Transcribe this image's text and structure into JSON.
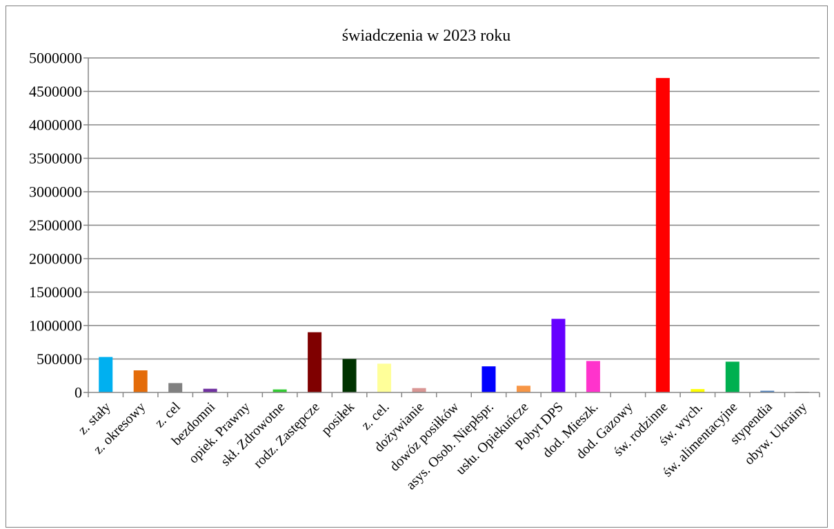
{
  "chart_data": {
    "type": "bar",
    "title": "świadczenia w 2023 roku",
    "xlabel": "",
    "ylabel": "",
    "ylim": [
      0,
      5000000
    ],
    "y_ticks": [
      "0",
      "500000",
      "1000000",
      "1500000",
      "2000000",
      "2500000",
      "3000000",
      "3500000",
      "4000000",
      "4500000",
      "5000000"
    ],
    "grid": true,
    "legend": "none",
    "categories": [
      "z. stały",
      "z. okresowy",
      "z. cel",
      "bezdomni",
      "opiek. Prawny",
      "skł. Zdrowotne",
      "rodz. Zastępcze",
      "posiłek",
      "z. cel.",
      "dożywianie",
      "dowóz posiłków",
      "asys. Osob. Niepłspr.",
      "usłu. Opiekuńcze",
      "Pobyt DPS",
      "dod. Mieszk.",
      "dod. Gazowy",
      "św. rodzinne",
      "św. wych.",
      "św. alimentacyjne",
      "stypendia",
      "obyw. Ukrainy"
    ],
    "values": [
      530000,
      330000,
      140000,
      55000,
      0,
      45000,
      900000,
      500000,
      430000,
      65000,
      0,
      390000,
      100000,
      1100000,
      470000,
      5000,
      4700000,
      50000,
      460000,
      25000,
      10000
    ],
    "colors": [
      "#00B0F0",
      "#E46C0A",
      "#808080",
      "#7030A0",
      "#BFBFBF",
      "#33CC33",
      "#7F0000",
      "#003300",
      "#FFFF99",
      "#D99694",
      "#FF0000",
      "#0000FF",
      "#F79646",
      "#6600FF",
      "#FF33CC",
      "#BFBFBF",
      "#FF0000",
      "#FFFF00",
      "#00B050",
      "#4F81BD",
      "#808080"
    ]
  }
}
